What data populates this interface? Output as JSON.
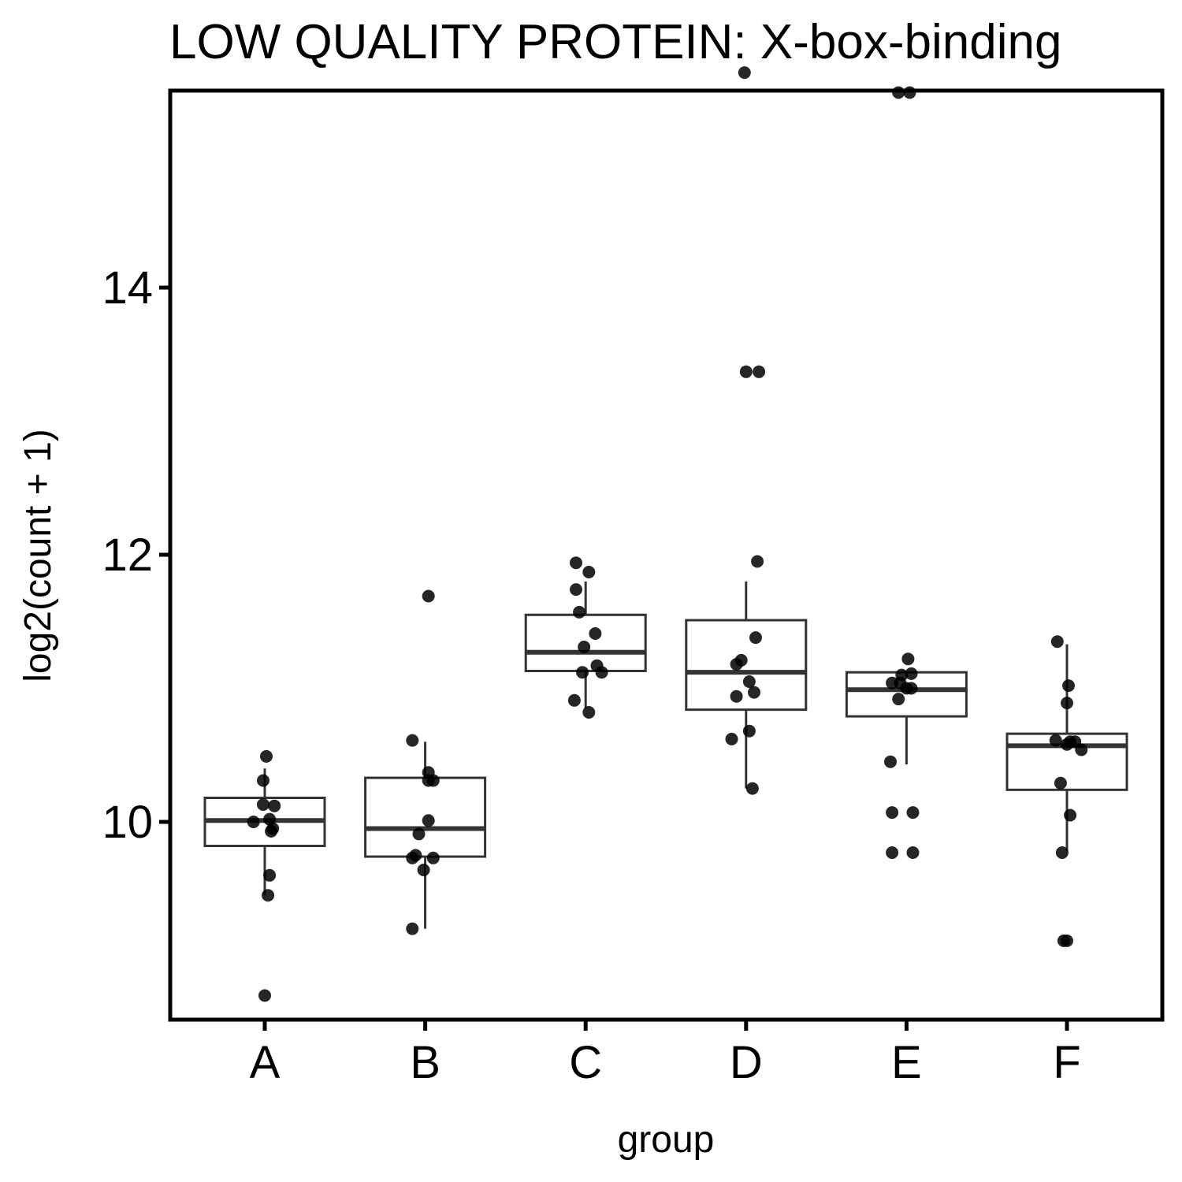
{
  "chart_data": {
    "type": "box",
    "title": "LOW QUALITY PROTEIN: X-box-binding",
    "xlabel": "group",
    "ylabel": "log2(count + 1)",
    "ylim": [
      8.35,
      15.6
    ],
    "yticks": [
      10,
      12,
      14
    ],
    "categories": [
      "A",
      "B",
      "C",
      "D",
      "E",
      "F"
    ],
    "grid": false,
    "colors": {
      "box": "#333333",
      "point": "#000000",
      "frame": "#000000"
    },
    "boxes": [
      {
        "group": "A",
        "lower_whisker": 9.45,
        "q1": 9.82,
        "median": 10.01,
        "q3": 10.18,
        "upper_whisker": 10.4
      },
      {
        "group": "B",
        "lower_whisker": 9.2,
        "q1": 9.74,
        "median": 9.95,
        "q3": 10.33,
        "upper_whisker": 10.6
      },
      {
        "group": "C",
        "lower_whisker": 10.85,
        "q1": 11.13,
        "median": 11.27,
        "q3": 11.55,
        "upper_whisker": 11.8
      },
      {
        "group": "D",
        "lower_whisker": 10.25,
        "q1": 10.84,
        "median": 11.12,
        "q3": 11.51,
        "upper_whisker": 11.8
      },
      {
        "group": "E",
        "lower_whisker": 10.43,
        "q1": 10.79,
        "median": 10.99,
        "q3": 11.12,
        "upper_whisker": 11.12
      },
      {
        "group": "F",
        "lower_whisker": 9.78,
        "q1": 10.24,
        "median": 10.57,
        "q3": 10.66,
        "upper_whisker": 11.33
      }
    ],
    "points": [
      {
        "group": "A",
        "offset": 0.0,
        "value": 8.7
      },
      {
        "group": "A",
        "offset": 0.02,
        "value": 9.45
      },
      {
        "group": "A",
        "offset": 0.03,
        "value": 9.6
      },
      {
        "group": "A",
        "offset": 0.05,
        "value": 9.95
      },
      {
        "group": "A",
        "offset": 0.04,
        "value": 9.93
      },
      {
        "group": "A",
        "offset": -0.07,
        "value": 10.0
      },
      {
        "group": "A",
        "offset": 0.03,
        "value": 10.02
      },
      {
        "group": "A",
        "offset": -0.01,
        "value": 10.13
      },
      {
        "group": "A",
        "offset": 0.06,
        "value": 10.12
      },
      {
        "group": "A",
        "offset": -0.01,
        "value": 10.31
      },
      {
        "group": "A",
        "offset": 0.01,
        "value": 10.49
      },
      {
        "group": "B",
        "offset": -0.08,
        "value": 9.2
      },
      {
        "group": "B",
        "offset": -0.01,
        "value": 9.64
      },
      {
        "group": "B",
        "offset": -0.08,
        "value": 9.73
      },
      {
        "group": "B",
        "offset": 0.05,
        "value": 9.73
      },
      {
        "group": "B",
        "offset": -0.06,
        "value": 9.75
      },
      {
        "group": "B",
        "offset": -0.04,
        "value": 9.91
      },
      {
        "group": "B",
        "offset": 0.02,
        "value": 10.01
      },
      {
        "group": "B",
        "offset": 0.05,
        "value": 10.31
      },
      {
        "group": "B",
        "offset": 0.02,
        "value": 10.31
      },
      {
        "group": "B",
        "offset": 0.02,
        "value": 10.37
      },
      {
        "group": "B",
        "offset": -0.08,
        "value": 10.61
      },
      {
        "group": "B",
        "offset": 0.02,
        "value": 11.69
      },
      {
        "group": "C",
        "offset": 0.02,
        "value": 10.82
      },
      {
        "group": "C",
        "offset": -0.07,
        "value": 10.91
      },
      {
        "group": "C",
        "offset": 0.1,
        "value": 11.12
      },
      {
        "group": "C",
        "offset": -0.02,
        "value": 11.12
      },
      {
        "group": "C",
        "offset": 0.07,
        "value": 11.17
      },
      {
        "group": "C",
        "offset": -0.01,
        "value": 11.31
      },
      {
        "group": "C",
        "offset": 0.06,
        "value": 11.41
      },
      {
        "group": "C",
        "offset": -0.04,
        "value": 11.57
      },
      {
        "group": "C",
        "offset": -0.06,
        "value": 11.74
      },
      {
        "group": "C",
        "offset": 0.02,
        "value": 11.87
      },
      {
        "group": "C",
        "offset": -0.06,
        "value": 11.94
      },
      {
        "group": "D",
        "offset": 0.04,
        "value": 10.25
      },
      {
        "group": "D",
        "offset": -0.09,
        "value": 10.62
      },
      {
        "group": "D",
        "offset": 0.02,
        "value": 10.68
      },
      {
        "group": "D",
        "offset": -0.06,
        "value": 10.94
      },
      {
        "group": "D",
        "offset": 0.05,
        "value": 10.97
      },
      {
        "group": "D",
        "offset": 0.02,
        "value": 11.05
      },
      {
        "group": "D",
        "offset": -0.06,
        "value": 11.18
      },
      {
        "group": "D",
        "offset": -0.03,
        "value": 11.21
      },
      {
        "group": "D",
        "offset": 0.06,
        "value": 11.38
      },
      {
        "group": "D",
        "offset": 0.07,
        "value": 11.95
      },
      {
        "group": "D",
        "offset": 0.0,
        "value": 13.37
      },
      {
        "group": "D",
        "offset": 0.08,
        "value": 13.37
      },
      {
        "group": "D",
        "offset": -0.01,
        "value": 15.61
      },
      {
        "group": "E",
        "offset": -0.09,
        "value": 9.77
      },
      {
        "group": "E",
        "offset": 0.04,
        "value": 9.77
      },
      {
        "group": "E",
        "offset": -0.09,
        "value": 10.07
      },
      {
        "group": "E",
        "offset": 0.04,
        "value": 10.07
      },
      {
        "group": "E",
        "offset": -0.1,
        "value": 10.45
      },
      {
        "group": "E",
        "offset": -0.05,
        "value": 10.92
      },
      {
        "group": "E",
        "offset": 0.03,
        "value": 11.0
      },
      {
        "group": "E",
        "offset": 0.0,
        "value": 11.0
      },
      {
        "group": "E",
        "offset": -0.09,
        "value": 11.04
      },
      {
        "group": "E",
        "offset": -0.04,
        "value": 11.04
      },
      {
        "group": "E",
        "offset": -0.03,
        "value": 11.1
      },
      {
        "group": "E",
        "offset": 0.03,
        "value": 11.11
      },
      {
        "group": "E",
        "offset": 0.01,
        "value": 11.22
      },
      {
        "group": "E",
        "offset": -0.05,
        "value": 15.46
      },
      {
        "group": "E",
        "offset": 0.02,
        "value": 15.46
      },
      {
        "group": "F",
        "offset": -0.02,
        "value": 9.11
      },
      {
        "group": "F",
        "offset": 0.0,
        "value": 9.11
      },
      {
        "group": "F",
        "offset": -0.03,
        "value": 9.77
      },
      {
        "group": "F",
        "offset": 0.02,
        "value": 10.05
      },
      {
        "group": "F",
        "offset": -0.04,
        "value": 10.29
      },
      {
        "group": "F",
        "offset": 0.09,
        "value": 10.54
      },
      {
        "group": "F",
        "offset": 0.0,
        "value": 10.58
      },
      {
        "group": "F",
        "offset": -0.07,
        "value": 10.61
      },
      {
        "group": "F",
        "offset": 0.02,
        "value": 10.6
      },
      {
        "group": "F",
        "offset": 0.05,
        "value": 10.6
      },
      {
        "group": "F",
        "offset": 0.0,
        "value": 10.89
      },
      {
        "group": "F",
        "offset": 0.01,
        "value": 11.02
      },
      {
        "group": "F",
        "offset": -0.06,
        "value": 11.35
      }
    ]
  }
}
